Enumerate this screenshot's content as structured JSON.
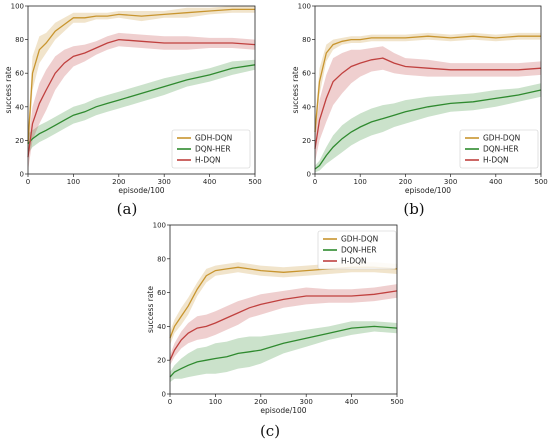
{
  "colors": {
    "gdh": "#c8952f",
    "dqnher": "#2f8a2f",
    "hdqn": "#c0413f"
  },
  "chart_data": [
    {
      "type": "line",
      "panel_label": "(a)",
      "xlabel": "episode/100",
      "ylabel": "success rate",
      "xlim": [
        0,
        500
      ],
      "ylim": [
        0,
        100
      ],
      "xticks": [
        "0",
        "100",
        "200",
        "300",
        "400",
        "500"
      ],
      "yticks": [
        "0",
        "20",
        "40",
        "60",
        "80",
        "100"
      ],
      "grid": false,
      "legend": "bottom-right",
      "x": [
        0,
        10,
        25,
        40,
        60,
        80,
        100,
        125,
        150,
        175,
        200,
        250,
        300,
        350,
        400,
        450,
        500
      ],
      "series": [
        {
          "name": "GDH-DQN",
          "color": "#c8952f",
          "values": [
            18,
            60,
            74,
            78,
            85,
            89,
            93,
            93,
            94,
            94,
            95,
            94,
            95,
            96,
            97,
            98,
            98
          ],
          "spread": [
            8,
            10,
            8,
            6,
            5,
            4,
            3,
            3,
            2,
            2,
            2,
            3,
            2,
            3,
            2,
            2,
            2
          ]
        },
        {
          "name": "DQN-HER",
          "color": "#2f8a2f",
          "values": [
            18,
            21,
            24,
            26,
            29,
            32,
            35,
            37,
            40,
            42,
            44,
            48,
            52,
            56,
            59,
            63,
            65
          ],
          "spread": [
            6,
            5,
            5,
            5,
            5,
            5,
            5,
            5,
            5,
            5,
            5,
            5,
            5,
            4,
            4,
            4,
            3
          ]
        },
        {
          "name": "H-DQN",
          "color": "#c0413f",
          "values": [
            10,
            30,
            42,
            50,
            60,
            66,
            70,
            72,
            75,
            78,
            80,
            79,
            78,
            78,
            78,
            78,
            77
          ],
          "spread": [
            8,
            10,
            12,
            12,
            10,
            8,
            6,
            5,
            4,
            4,
            4,
            4,
            4,
            4,
            3,
            3,
            3
          ]
        }
      ]
    },
    {
      "type": "line",
      "panel_label": "(b)",
      "xlabel": "episode/100",
      "ylabel": "success rate",
      "xlim": [
        0,
        500
      ],
      "ylim": [
        0,
        100
      ],
      "xticks": [
        "0",
        "100",
        "200",
        "300",
        "400",
        "500"
      ],
      "yticks": [
        "0",
        "20",
        "40",
        "60",
        "80",
        "100"
      ],
      "grid": false,
      "legend": "bottom-right",
      "x": [
        0,
        10,
        25,
        40,
        60,
        80,
        100,
        125,
        150,
        175,
        200,
        250,
        300,
        350,
        400,
        450,
        500
      ],
      "series": [
        {
          "name": "GDH-DQN",
          "color": "#c8952f",
          "values": [
            25,
            55,
            72,
            77,
            79,
            80,
            80,
            81,
            81,
            81,
            81,
            82,
            81,
            82,
            81,
            82,
            82
          ],
          "spread": [
            6,
            8,
            5,
            3,
            2,
            2,
            2,
            2,
            2,
            2,
            2,
            2,
            2,
            2,
            2,
            2,
            2
          ]
        },
        {
          "name": "DQN-HER",
          "color": "#2f8a2f",
          "values": [
            3,
            5,
            11,
            16,
            21,
            25,
            28,
            31,
            33,
            35,
            37,
            40,
            42,
            43,
            45,
            47,
            50
          ],
          "spread": [
            2,
            3,
            5,
            7,
            8,
            8,
            8,
            8,
            8,
            7,
            7,
            6,
            5,
            5,
            5,
            4,
            4
          ]
        },
        {
          "name": "H-DQN",
          "color": "#c0413f",
          "values": [
            15,
            32,
            45,
            55,
            60,
            64,
            66,
            68,
            69,
            66,
            64,
            63,
            62,
            62,
            62,
            62,
            63
          ],
          "spread": [
            8,
            12,
            14,
            14,
            12,
            10,
            8,
            7,
            7,
            6,
            5,
            5,
            4,
            4,
            4,
            4,
            4
          ]
        }
      ]
    },
    {
      "type": "line",
      "panel_label": "(c)",
      "xlabel": "episode/100",
      "ylabel": "success rate",
      "xlim": [
        0,
        500
      ],
      "ylim": [
        0,
        100
      ],
      "xticks": [
        "0",
        "100",
        "200",
        "300",
        "400",
        "500"
      ],
      "yticks": [
        "0",
        "20",
        "40",
        "60",
        "80",
        "100"
      ],
      "grid": false,
      "legend": "top-right",
      "x": [
        0,
        10,
        25,
        40,
        60,
        80,
        100,
        125,
        150,
        175,
        200,
        250,
        300,
        350,
        400,
        450,
        500
      ],
      "series": [
        {
          "name": "GDH-DQN",
          "color": "#c8952f",
          "values": [
            33,
            40,
            46,
            52,
            62,
            70,
            73,
            74,
            75,
            74,
            73,
            72,
            73,
            74,
            75,
            75,
            74
          ],
          "spread": [
            4,
            4,
            5,
            5,
            4,
            4,
            3,
            3,
            3,
            3,
            3,
            3,
            3,
            3,
            3,
            3,
            3
          ]
        },
        {
          "name": "DQN-HER",
          "color": "#2f8a2f",
          "values": [
            10,
            13,
            15,
            17,
            19,
            20,
            21,
            22,
            24,
            25,
            26,
            30,
            33,
            36,
            39,
            40,
            39
          ],
          "spread": [
            3,
            4,
            6,
            7,
            8,
            8,
            9,
            9,
            9,
            9,
            8,
            6,
            5,
            4,
            4,
            3,
            3
          ]
        },
        {
          "name": "H-DQN",
          "color": "#c0413f",
          "values": [
            20,
            26,
            32,
            36,
            39,
            40,
            42,
            45,
            48,
            51,
            53,
            56,
            58,
            58,
            58,
            59,
            61
          ],
          "spread": [
            3,
            4,
            5,
            6,
            7,
            7,
            7,
            7,
            7,
            6,
            6,
            5,
            5,
            4,
            4,
            4,
            4
          ]
        }
      ]
    }
  ]
}
